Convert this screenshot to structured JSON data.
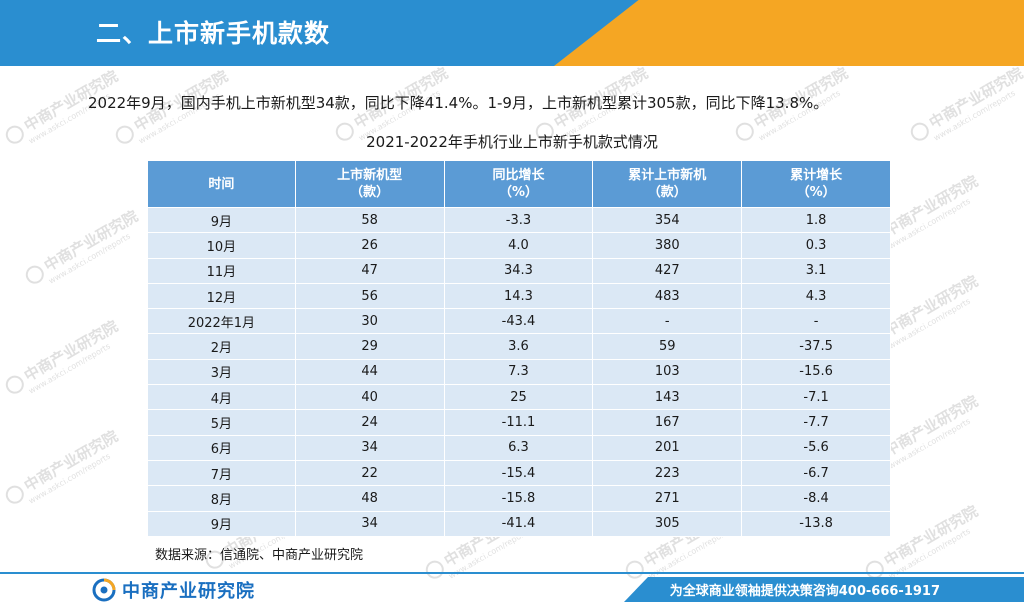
{
  "header": {
    "title": "二、上市新手机款数"
  },
  "summary": "2022年9月，国内手机上市新机型34款，同比下降41.4%。1-9月，上市新机型累计305款，同比下降13.8%。",
  "table_title": "2021-2022年手机行业上市新手机款式情况",
  "table": {
    "headers": [
      {
        "line1": "时间",
        "line2": ""
      },
      {
        "line1": "上市新机型",
        "line2": "（款）"
      },
      {
        "line1": "同比增长",
        "line2": "（%）"
      },
      {
        "line1": "累计上市新机",
        "line2": "（款）"
      },
      {
        "line1": "累计增长",
        "line2": "（%）"
      }
    ],
    "rows": [
      [
        "9月",
        "58",
        "-3.3",
        "354",
        "1.8"
      ],
      [
        "10月",
        "26",
        "4.0",
        "380",
        "0.3"
      ],
      [
        "11月",
        "47",
        "34.3",
        "427",
        "3.1"
      ],
      [
        "12月",
        "56",
        "14.3",
        "483",
        "4.3"
      ],
      [
        "2022年1月",
        "30",
        "-43.4",
        "-",
        "-"
      ],
      [
        "2月",
        "29",
        "3.6",
        "59",
        "-37.5"
      ],
      [
        "3月",
        "44",
        "7.3",
        "103",
        "-15.6"
      ],
      [
        "4月",
        "40",
        "25",
        "143",
        "-7.1"
      ],
      [
        "5月",
        "24",
        "-11.1",
        "167",
        "-7.7"
      ],
      [
        "6月",
        "34",
        "6.3",
        "201",
        "-5.6"
      ],
      [
        "7月",
        "22",
        "-15.4",
        "223",
        "-6.7"
      ],
      [
        "8月",
        "48",
        "-15.8",
        "271",
        "-8.4"
      ],
      [
        "9月",
        "34",
        "-41.4",
        "305",
        "-13.8"
      ]
    ]
  },
  "source": "数据来源：信通院、中商产业研究院",
  "footer": {
    "logo_text": "中商产业研究院",
    "slogan": "为全球商业领袖提供决策咨询400-666-1917"
  },
  "watermark": {
    "text": "中商产业研究院",
    "url": "www.askci.com/reports"
  },
  "colors": {
    "header_blue": "#2a8ed0",
    "header_orange": "#f5a623",
    "table_header": "#5b9bd5",
    "table_cell": "#dbe8f5",
    "logo_blue": "#1a6fc0"
  }
}
